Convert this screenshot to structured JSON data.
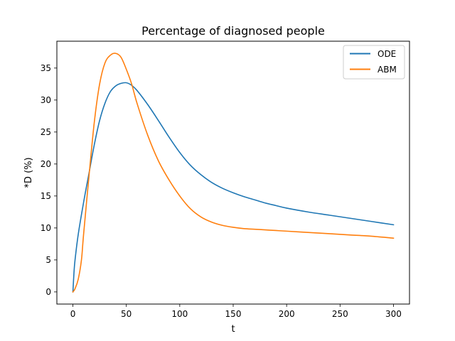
{
  "chart_data": {
    "type": "line",
    "title": "Percentage of diagnosed people",
    "xlabel": "t",
    "ylabel": "*D (%)",
    "xlim": [
      -15,
      315
    ],
    "ylim": [
      -1.9,
      39.2
    ],
    "xticks": [
      0,
      50,
      100,
      150,
      200,
      250,
      300
    ],
    "yticks": [
      0,
      5,
      10,
      15,
      20,
      25,
      30,
      35
    ],
    "grid": false,
    "legend_position": "top-right",
    "series": [
      {
        "name": "ODE",
        "color": "#1f77b4",
        "x": [
          0,
          1,
          2,
          5,
          10,
          15,
          20,
          25,
          30,
          35,
          40,
          45,
          50,
          55,
          60,
          70,
          80,
          90,
          100,
          110,
          120,
          130,
          140,
          150,
          160,
          170,
          180,
          190,
          200,
          220,
          240,
          260,
          280,
          300
        ],
        "y": [
          0,
          3,
          5,
          9,
          14,
          18.5,
          23,
          26.8,
          29.5,
          31.3,
          32.2,
          32.6,
          32.7,
          32.3,
          31.5,
          29.3,
          26.8,
          24.2,
          21.8,
          19.8,
          18.3,
          17.1,
          16.2,
          15.5,
          14.9,
          14.4,
          13.9,
          13.5,
          13.1,
          12.5,
          12,
          11.5,
          11,
          10.5
        ]
      },
      {
        "name": "ABM",
        "color": "#ff7f0e",
        "x": [
          0,
          2,
          5,
          8,
          10,
          15,
          20,
          25,
          30,
          35,
          40,
          45,
          50,
          55,
          60,
          70,
          80,
          90,
          100,
          110,
          120,
          130,
          140,
          150,
          160,
          170,
          180,
          190,
          200,
          220,
          240,
          260,
          280,
          300
        ],
        "y": [
          0,
          0.5,
          2,
          5,
          9,
          18,
          26.5,
          32.5,
          35.8,
          37,
          37.3,
          36.7,
          34.8,
          32.5,
          29.5,
          24.5,
          20.5,
          17.5,
          15,
          13,
          11.7,
          10.9,
          10.4,
          10.1,
          9.9,
          9.8,
          9.7,
          9.6,
          9.5,
          9.3,
          9.1,
          8.9,
          8.7,
          8.4
        ]
      }
    ]
  }
}
